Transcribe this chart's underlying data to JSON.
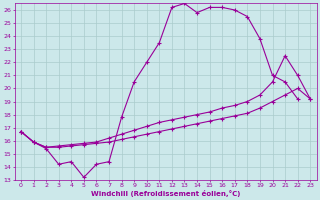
{
  "xlabel": "Windchill (Refroidissement éolien,°C)",
  "bg_color": "#cce8ea",
  "grid_color": "#aacccc",
  "line_color": "#990099",
  "xlim": [
    -0.5,
    23.5
  ],
  "ylim": [
    13,
    26.5
  ],
  "ytick_vals": [
    13,
    14,
    15,
    16,
    17,
    18,
    19,
    20,
    21,
    22,
    23,
    24,
    25,
    26
  ],
  "xtick_vals": [
    0,
    1,
    2,
    3,
    4,
    5,
    6,
    7,
    8,
    9,
    10,
    11,
    12,
    13,
    14,
    15,
    16,
    17,
    18,
    19,
    20,
    21,
    22,
    23
  ],
  "line1_x": [
    0,
    1,
    2,
    3,
    4,
    5,
    6,
    7,
    8,
    9,
    10,
    11,
    12,
    13,
    14,
    15,
    16,
    17,
    18,
    19,
    20,
    21,
    22
  ],
  "line1_y": [
    16.7,
    15.9,
    15.4,
    14.2,
    14.4,
    13.2,
    14.2,
    14.4,
    17.8,
    20.5,
    22.0,
    23.5,
    26.2,
    26.5,
    25.8,
    26.2,
    26.2,
    26.0,
    25.5,
    23.8,
    21.0,
    20.5,
    19.2
  ],
  "line2_x": [
    0,
    1,
    2,
    3,
    4,
    5,
    6,
    7,
    8,
    9,
    10,
    11,
    12,
    13,
    14,
    15,
    16,
    17,
    18,
    19,
    20,
    21,
    22,
    23
  ],
  "line2_y": [
    16.7,
    15.9,
    15.5,
    15.6,
    15.7,
    15.8,
    15.9,
    16.2,
    16.5,
    16.8,
    17.1,
    17.4,
    17.6,
    17.8,
    18.0,
    18.2,
    18.5,
    18.7,
    19.0,
    19.5,
    20.5,
    22.5,
    21.0,
    19.2
  ],
  "line3_x": [
    0,
    1,
    2,
    3,
    4,
    5,
    6,
    7,
    8,
    9,
    10,
    11,
    12,
    13,
    14,
    15,
    16,
    17,
    18,
    19,
    20,
    21,
    22,
    23
  ],
  "line3_y": [
    16.7,
    15.9,
    15.5,
    15.5,
    15.6,
    15.7,
    15.8,
    15.9,
    16.1,
    16.3,
    16.5,
    16.7,
    16.9,
    17.1,
    17.3,
    17.5,
    17.7,
    17.9,
    18.1,
    18.5,
    19.0,
    19.5,
    20.0,
    19.2
  ]
}
